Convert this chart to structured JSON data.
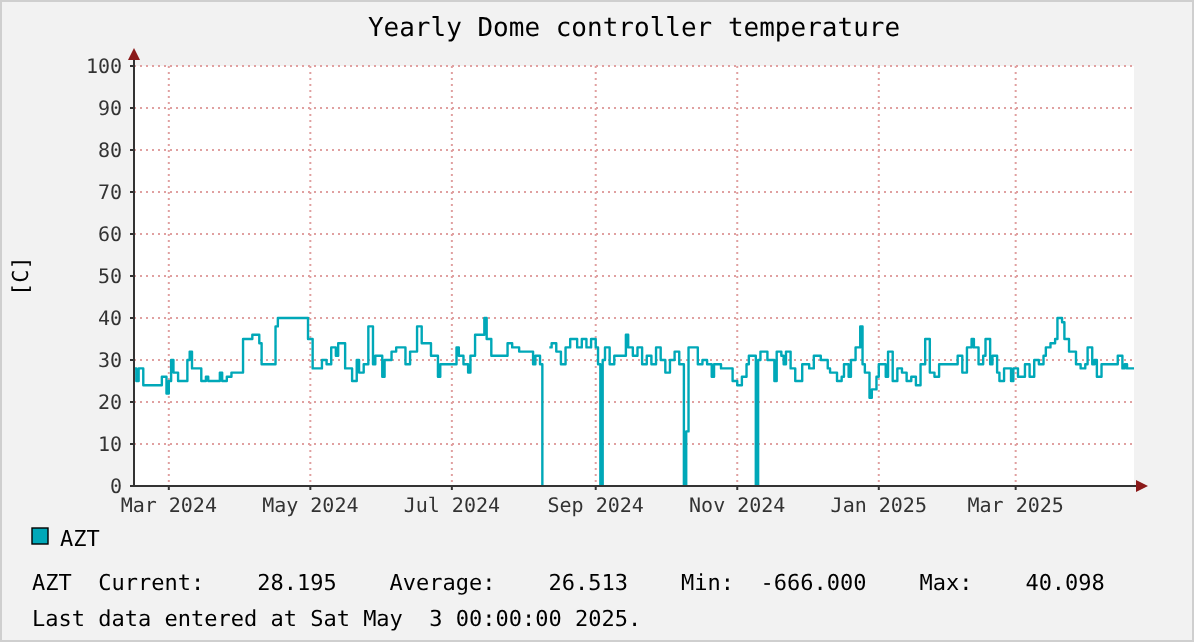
{
  "chart_data": {
    "type": "step",
    "title": "Yearly Dome controller temperature",
    "ylabel": "[C]",
    "xlim": [
      "2024-02-15",
      "2025-04-21"
    ],
    "ylim": [
      0,
      100
    ],
    "yticks": [
      0,
      10,
      20,
      30,
      40,
      50,
      60,
      70,
      80,
      90,
      100
    ],
    "xticks": [
      {
        "value": "2024-03-01",
        "label": "Mar 2024"
      },
      {
        "value": "2024-05-01",
        "label": "May 2024"
      },
      {
        "value": "2024-07-01",
        "label": "Jul 2024"
      },
      {
        "value": "2024-09-01",
        "label": "Sep 2024"
      },
      {
        "value": "2024-11-01",
        "label": "Nov 2024"
      },
      {
        "value": "2025-01-01",
        "label": "Jan 2025"
      },
      {
        "value": "2025-03-01",
        "label": "Mar 2025"
      }
    ],
    "grid": true,
    "legend": "bottom",
    "line_style": "solid",
    "annotations": [
      "AZT  Current:    28.195    Average:    26.513    Min:  -666.000    Max:    40.098",
      "Last data entered at Sat May  3 00:00:00 2025."
    ],
    "x": [
      "2024-02-15",
      "2024-02-16",
      "2024-02-17",
      "2024-02-19",
      "2024-02-27",
      "2024-02-29",
      "2024-03-01",
      "2024-03-02",
      "2024-03-03",
      "2024-03-05",
      "2024-03-09",
      "2024-03-10",
      "2024-03-11",
      "2024-03-15",
      "2024-03-17",
      "2024-03-18",
      "2024-03-23",
      "2024-03-24",
      "2024-03-26",
      "2024-03-28",
      "2024-04-02",
      "2024-04-06",
      "2024-04-09",
      "2024-04-10",
      "2024-04-16",
      "2024-04-17",
      "2024-04-30",
      "2024-05-02",
      "2024-05-06",
      "2024-05-08",
      "2024-05-10",
      "2024-05-12",
      "2024-05-13",
      "2024-05-16",
      "2024-05-19",
      "2024-05-21",
      "2024-05-22",
      "2024-05-24",
      "2024-05-26",
      "2024-05-28",
      "2024-05-29",
      "2024-06-01",
      "2024-06-02",
      "2024-06-05",
      "2024-06-07",
      "2024-06-11",
      "2024-06-13",
      "2024-06-16",
      "2024-06-18",
      "2024-06-22",
      "2024-06-25",
      "2024-06-26",
      "2024-07-03",
      "2024-07-04",
      "2024-07-06",
      "2024-07-08",
      "2024-07-09",
      "2024-07-11",
      "2024-07-15",
      "2024-07-16",
      "2024-07-18",
      "2024-07-25",
      "2024-07-27",
      "2024-07-30",
      "2024-08-05",
      "2024-08-06",
      "2024-08-08",
      "2024-08-09",
      "2024-08-10",
      "2024-08-12",
      "2024-08-13",
      "2024-08-15",
      "2024-08-17",
      "2024-08-19",
      "2024-08-21",
      "2024-08-24",
      "2024-08-26",
      "2024-08-28",
      "2024-08-30",
      "2024-09-01",
      "2024-09-02",
      "2024-09-03",
      "2024-09-04",
      "2024-09-05",
      "2024-09-07",
      "2024-09-09",
      "2024-09-14",
      "2024-09-15",
      "2024-09-17",
      "2024-09-19",
      "2024-09-21",
      "2024-09-23",
      "2024-09-25",
      "2024-09-27",
      "2024-09-29",
      "2024-10-01",
      "2024-10-03",
      "2024-10-05",
      "2024-10-07",
      "2024-10-09",
      "2024-10-10",
      "2024-10-11",
      "2024-10-15",
      "2024-10-17",
      "2024-10-19",
      "2024-10-21",
      "2024-10-22",
      "2024-10-25",
      "2024-10-30",
      "2024-11-01",
      "2024-11-03",
      "2024-11-05",
      "2024-11-06",
      "2024-11-09",
      "2024-11-10",
      "2024-11-11",
      "2024-11-14",
      "2024-11-17",
      "2024-11-18",
      "2024-11-20",
      "2024-11-21",
      "2024-11-22",
      "2024-11-24",
      "2024-11-26",
      "2024-11-29",
      "2024-12-02",
      "2024-12-04",
      "2024-12-07",
      "2024-12-10",
      "2024-12-11",
      "2024-12-14",
      "2024-12-16",
      "2024-12-17",
      "2024-12-19",
      "2024-12-20",
      "2024-12-22",
      "2024-12-24",
      "2024-12-25",
      "2024-12-26",
      "2024-12-28",
      "2024-12-29",
      "2024-12-31",
      "2025-01-01",
      "2025-01-04",
      "2025-01-05",
      "2025-01-07",
      "2025-01-09",
      "2025-01-11",
      "2025-01-13",
      "2025-01-15",
      "2025-01-17",
      "2025-01-19",
      "2025-01-21",
      "2025-01-23",
      "2025-01-25",
      "2025-01-27",
      "2025-02-04",
      "2025-02-06",
      "2025-02-08",
      "2025-02-10",
      "2025-02-11",
      "2025-02-13",
      "2025-02-15",
      "2025-02-16",
      "2025-02-18",
      "2025-02-19",
      "2025-02-21",
      "2025-02-22",
      "2025-02-24",
      "2025-02-27",
      "2025-02-28",
      "2025-03-02",
      "2025-03-05",
      "2025-03-07",
      "2025-03-09",
      "2025-03-11",
      "2025-03-13",
      "2025-03-14",
      "2025-03-16",
      "2025-03-18",
      "2025-03-19",
      "2025-03-21",
      "2025-03-22",
      "2025-03-24",
      "2025-03-27",
      "2025-03-29",
      "2025-03-31",
      "2025-04-01",
      "2025-04-03",
      "2025-04-04",
      "2025-04-05",
      "2025-04-07",
      "2025-04-14",
      "2025-04-16",
      "2025-04-17",
      "2025-04-18",
      "2025-04-21"
    ],
    "series": [
      {
        "name": "AZT",
        "color": "#00a8b8",
        "values": [
          28,
          25,
          28,
          24,
          26,
          22,
          25,
          30,
          27,
          25,
          30,
          32,
          28,
          25,
          26,
          25,
          27,
          25,
          26,
          27,
          35,
          36,
          34,
          29,
          38,
          40,
          35,
          28,
          30,
          29,
          33,
          31,
          34,
          28,
          25,
          30,
          27,
          29,
          38,
          29,
          31,
          26,
          30,
          32,
          33,
          29,
          32,
          38,
          34,
          31,
          26,
          29,
          33,
          31,
          29,
          27,
          31,
          36,
          40,
          35,
          31,
          34,
          33,
          32,
          29,
          31,
          29,
          0,
          null,
          33,
          34,
          32,
          29,
          33,
          35,
          33,
          35,
          33,
          35,
          33,
          29,
          0,
          30,
          33,
          29,
          31,
          36,
          33,
          31,
          33,
          29,
          31,
          29,
          33,
          30,
          27,
          30,
          32,
          29,
          0,
          13,
          33,
          29,
          30,
          29,
          26,
          29,
          28,
          25,
          24,
          26,
          29,
          31,
          0,
          30,
          32,
          30,
          25,
          32,
          31,
          29,
          32,
          28,
          25,
          29,
          28,
          31,
          30,
          28,
          27,
          25,
          26,
          29,
          26,
          30,
          33,
          38,
          29,
          27,
          21,
          23,
          26,
          29,
          26,
          32,
          25,
          28,
          27,
          25,
          26,
          24,
          29,
          35,
          27,
          26,
          29,
          31,
          27,
          33,
          35,
          33,
          29,
          31,
          35,
          29,
          31,
          27,
          25,
          28,
          25,
          28,
          26,
          29,
          26,
          30,
          29,
          31,
          33,
          34,
          35,
          40,
          39,
          35,
          32,
          29,
          28,
          29,
          33,
          29,
          30,
          26,
          29,
          31,
          28,
          29,
          28,
          28
        ]
      }
    ]
  }
}
